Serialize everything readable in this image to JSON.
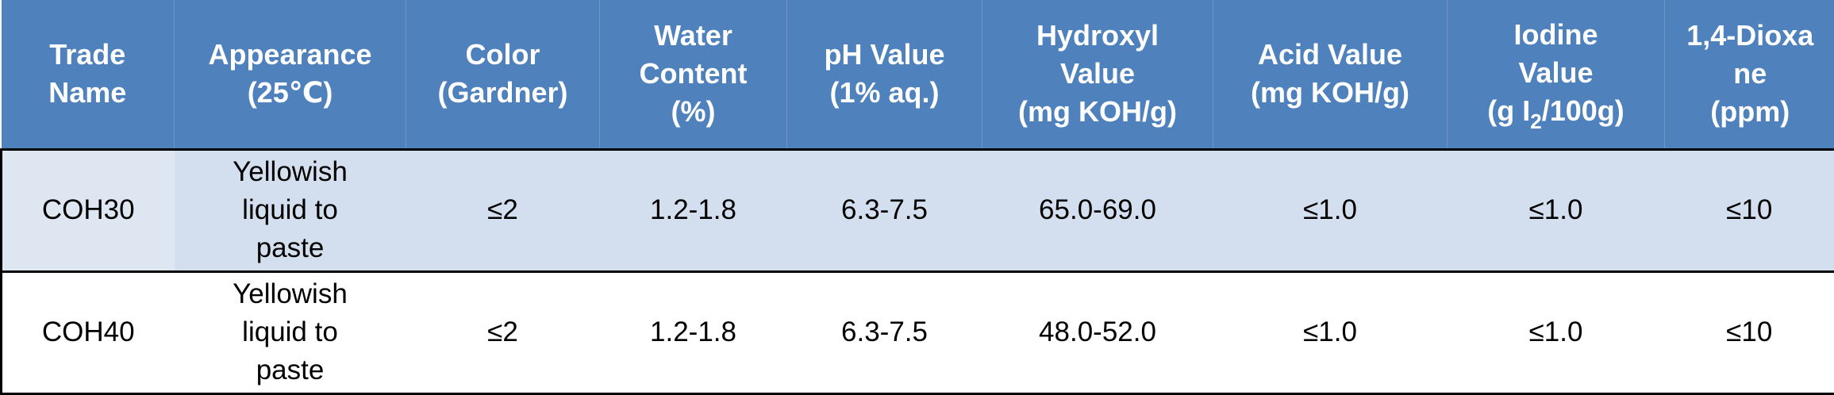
{
  "header": {
    "trade_name": [
      "Trade",
      "Name"
    ],
    "appearance": [
      "Appearance",
      "(25℃)"
    ],
    "color": [
      "Color",
      "(Gardner)"
    ],
    "water": [
      "Water",
      "Content",
      "(%)"
    ],
    "ph": [
      "pH Value",
      "(1% aq.)"
    ],
    "hydroxyl": [
      "Hydroxyl",
      "Value",
      "(mg KOH/g)"
    ],
    "acid": [
      "Acid Value",
      "(mg KOH/g)"
    ],
    "iodine": {
      "line1": "Iodine",
      "line2": "Value",
      "pre": "(g I",
      "sub": "2",
      "post": "/100g)"
    },
    "dioxane": [
      "1,4-Dioxa",
      "ne",
      "(ppm)"
    ]
  },
  "rows": [
    {
      "trade_name": "COH30",
      "appearance": [
        "Yellowish",
        "liquid to",
        "paste"
      ],
      "color": "≤2",
      "water": "1.2-1.8",
      "ph": "6.3-7.5",
      "hydroxyl": "65.0-69.0",
      "acid": "≤1.0",
      "iodine": "≤1.0",
      "dioxane": "≤10"
    },
    {
      "trade_name": "COH40",
      "appearance": [
        "Yellowish",
        "liquid to",
        "paste"
      ],
      "color": "≤2",
      "water": "1.2-1.8",
      "ph": "6.3-7.5",
      "hydroxyl": "48.0-52.0",
      "acid": "≤1.0",
      "iodine": "≤1.0",
      "dioxane": "≤10"
    }
  ],
  "colors": {
    "header_bg": "#4f81bd",
    "header_text": "#ffffff",
    "band_row": "#d3dfee",
    "band_first_col": "#dde6f1",
    "plain_row": "#ffffff",
    "border": "#000000"
  }
}
